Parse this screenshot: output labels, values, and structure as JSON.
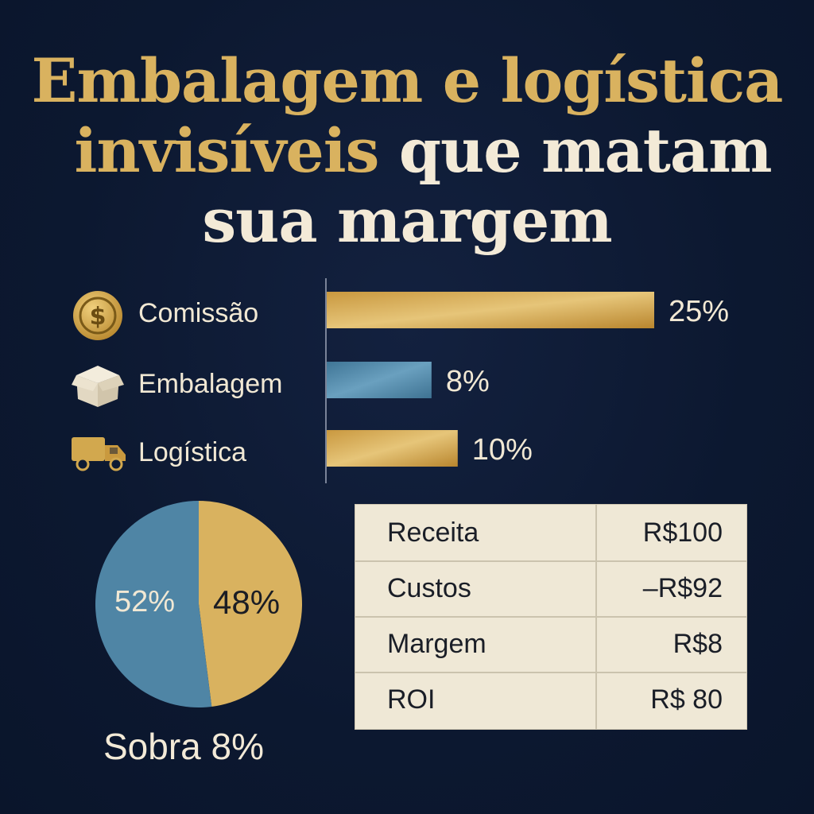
{
  "title": {
    "line1": "Embalagem e logística",
    "line2_gold": "invisíveis",
    "line2_rest": " que matam",
    "line3": "sua margem"
  },
  "colors": {
    "gold": "#d9b25f",
    "blue": "#4f85a5",
    "cream": "#f1e8d4",
    "background": "#0d1a33"
  },
  "chart_data": [
    {
      "type": "bar",
      "orientation": "horizontal",
      "categories": [
        "Comissão",
        "Embalagem",
        "Logística"
      ],
      "values": [
        25,
        8,
        10
      ],
      "value_labels": [
        "25%",
        "8%",
        "10%"
      ],
      "icons": [
        "coin-dollar-icon",
        "box-icon",
        "truck-icon"
      ],
      "bar_colors": [
        "gold",
        "blue",
        "gold"
      ],
      "xlim": [
        0,
        25
      ]
    },
    {
      "type": "pie",
      "values": [
        52,
        48
      ],
      "labels": [
        "52%",
        "48%"
      ],
      "colors": [
        "#4f85a5",
        "#d9b25f"
      ],
      "caption": "Sobra 8%"
    },
    {
      "type": "table",
      "rows": [
        {
          "label": "Receita",
          "value": "R$100"
        },
        {
          "label": "Custos",
          "value": "–R$92"
        },
        {
          "label": "Margem",
          "value": "R$8"
        },
        {
          "label": "ROI",
          "value": "R$ 80"
        }
      ]
    }
  ]
}
